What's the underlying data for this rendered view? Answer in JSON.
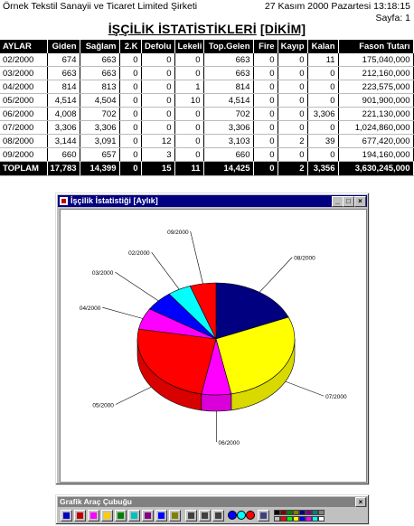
{
  "header": {
    "company": "Örnek Tekstil Sanayii ve Ticaret Limited Şirketi",
    "datetime": "27 Kasım 2000 Pazartesi  13:18:15",
    "page": "Sayfa:  1",
    "title": "İŞÇİLİK İSTATİSTİKLERİ",
    "subtitle": "[DİKİM]"
  },
  "table": {
    "columns": [
      "AYLAR",
      "Giden",
      "Sağlam",
      "2.K",
      "Defolu",
      "Lekeli",
      "Top.Gelen",
      "Fire",
      "Kayıp",
      "Kalan",
      "Fason Tutarı"
    ],
    "rows": [
      [
        "02/2000",
        "674",
        "663",
        "0",
        "0",
        "0",
        "663",
        "0",
        "0",
        "11",
        "175,040,000"
      ],
      [
        "03/2000",
        "663",
        "663",
        "0",
        "0",
        "0",
        "663",
        "0",
        "0",
        "0",
        "212,160,000"
      ],
      [
        "04/2000",
        "814",
        "813",
        "0",
        "0",
        "1",
        "814",
        "0",
        "0",
        "0",
        "223,575,000"
      ],
      [
        "05/2000",
        "4,514",
        "4,504",
        "0",
        "0",
        "10",
        "4,514",
        "0",
        "0",
        "0",
        "901,900,000"
      ],
      [
        "06/2000",
        "4,008",
        "702",
        "0",
        "0",
        "0",
        "702",
        "0",
        "0",
        "3,306",
        "221,130,000"
      ],
      [
        "07/2000",
        "3,306",
        "3,306",
        "0",
        "0",
        "0",
        "3,306",
        "0",
        "0",
        "0",
        "1,024,860,000"
      ],
      [
        "08/2000",
        "3,144",
        "3,091",
        "0",
        "12",
        "0",
        "3,103",
        "0",
        "2",
        "39",
        "677,420,000"
      ],
      [
        "09/2000",
        "660",
        "657",
        "0",
        "3",
        "0",
        "660",
        "0",
        "0",
        "0",
        "194,160,000"
      ]
    ],
    "total": [
      "TOPLAM",
      "17,783",
      "14,399",
      "0",
      "15",
      "11",
      "14,425",
      "0",
      "2",
      "3,356",
      "3,630,245,000"
    ]
  },
  "chart_window": {
    "title": "İşçilik İstatistiği [Aylık]",
    "minimize": "_",
    "maximize": "□",
    "close": "×"
  },
  "chart_data": {
    "type": "pie",
    "categories": [
      "02/2000",
      "03/2000",
      "04/2000",
      "05/2000",
      "06/2000",
      "07/2000",
      "08/2000",
      "09/2000"
    ],
    "values": [
      175040000,
      212160000,
      223575000,
      901900000,
      221130000,
      1024860000,
      677420000,
      194160000
    ],
    "colors": [
      "#00ffff",
      "#0000ff",
      "#ff00ff",
      "#ff0000",
      "#ff00ff",
      "#ffff00",
      "#000080",
      "#ff0000"
    ],
    "style": "3d"
  },
  "toolbar": {
    "title": "Grafik Araç Çubuğu",
    "close": "×",
    "palette": [
      "#000000",
      "#800000",
      "#008000",
      "#808000",
      "#000080",
      "#800080",
      "#008080",
      "#808080",
      "#c0c0c0",
      "#ff0000",
      "#00ff00",
      "#ffff00",
      "#0000ff",
      "#ff00ff",
      "#00ffff",
      "#ffffff"
    ]
  }
}
